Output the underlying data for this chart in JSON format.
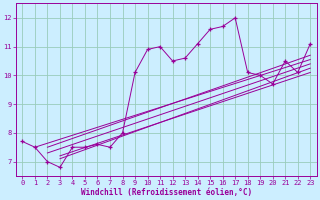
{
  "xlabel": "Windchill (Refroidissement éolien,°C)",
  "bg_color": "#cceeff",
  "line_color": "#990099",
  "xlim": [
    -0.5,
    23.5
  ],
  "ylim": [
    6.5,
    12.5
  ],
  "xticks": [
    0,
    1,
    2,
    3,
    4,
    5,
    6,
    7,
    8,
    9,
    10,
    11,
    12,
    13,
    14,
    15,
    16,
    17,
    18,
    19,
    20,
    21,
    22,
    23
  ],
  "yticks": [
    7,
    8,
    9,
    10,
    11,
    12
  ],
  "grid_color": "#99ccbb",
  "main_x": [
    0,
    1,
    2,
    3,
    4,
    5,
    6,
    7,
    8,
    9,
    10,
    11,
    12,
    13,
    14,
    15,
    16,
    17,
    18,
    19,
    20,
    21,
    22,
    23
  ],
  "main_y": [
    7.7,
    7.5,
    7.0,
    6.8,
    7.5,
    7.5,
    7.6,
    7.5,
    8.0,
    10.1,
    10.9,
    11.0,
    10.5,
    10.6,
    11.1,
    11.6,
    11.7,
    12.0,
    10.1,
    10.0,
    9.7,
    10.5,
    10.1,
    11.1
  ],
  "reg_lines": [
    {
      "x": [
        1,
        23
      ],
      "y": [
        7.5,
        10.55
      ]
    },
    {
      "x": [
        2,
        23
      ],
      "y": [
        7.3,
        10.4
      ]
    },
    {
      "x": [
        3,
        23
      ],
      "y": [
        7.1,
        10.25
      ]
    },
    {
      "x": [
        3,
        23
      ],
      "y": [
        7.2,
        10.1
      ]
    },
    {
      "x": [
        2,
        23
      ],
      "y": [
        7.5,
        10.7
      ]
    }
  ]
}
